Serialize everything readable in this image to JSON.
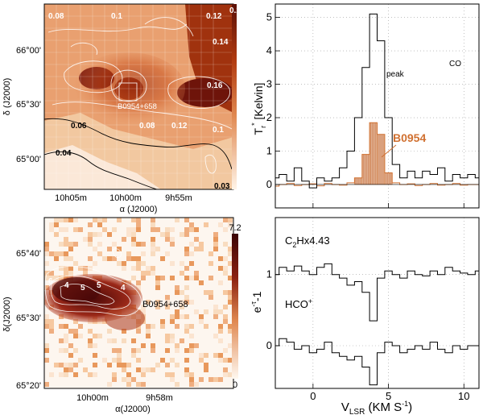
{
  "chart_data": [
    {
      "type": "heatmap",
      "panel": "top-left",
      "xlabel": "α (J2000)",
      "ylabel": "δ (J2000)",
      "x_ticks": [
        "10h05m",
        "10h00m",
        "9h55m"
      ],
      "y_ticks": [
        "66°00'",
        "65°30'",
        "65°00'"
      ],
      "colorbar_min": "0.03",
      "colorbar_max": "0.2",
      "contour_labels": [
        "0.08",
        "0.1",
        "0.12",
        "0.14",
        "0.16",
        "0.06",
        "0.08",
        "0.12",
        "0.1",
        "0.04",
        "0.03"
      ],
      "source_label": "B0954+658"
    },
    {
      "type": "line",
      "panel": "top-right",
      "ylabel_main": "T",
      "ylabel_sub": "r",
      "ylabel_sup": "*",
      "ylabel_rest": " [Kelvin]",
      "ylim": [
        -0.7,
        5.4
      ],
      "y_ticks": [
        "0",
        "1",
        "2",
        "3",
        "4",
        "5"
      ],
      "xlim": [
        -2.5,
        11
      ],
      "tag": "CO",
      "series": [
        {
          "name": "peak",
          "color": "#000000",
          "x": [
            -2.5,
            -2.0,
            -1.5,
            -1.0,
            -0.5,
            0.0,
            0.5,
            1.0,
            1.5,
            2.0,
            2.5,
            3.0,
            3.5,
            4.0,
            4.5,
            5.0,
            5.5,
            6.0,
            6.5,
            7.0,
            7.5,
            8.0,
            8.5,
            9.0,
            9.5,
            10.0,
            10.5,
            11.0
          ],
          "y": [
            0.2,
            0.3,
            0.1,
            0.5,
            0.1,
            -0.1,
            0.2,
            0.1,
            0.2,
            0.5,
            1.0,
            2.0,
            3.5,
            5.1,
            4.3,
            2.0,
            0.6,
            0.2,
            0.4,
            0.2,
            0.4,
            0.3,
            0.5,
            0.1,
            0.3,
            0.2,
            0.3,
            0.2
          ]
        },
        {
          "name": "B0954",
          "color": "#d07030",
          "x": [
            -2.5,
            -2.0,
            -1.5,
            -1.0,
            -0.5,
            0.0,
            0.5,
            1.0,
            1.5,
            2.0,
            2.5,
            3.0,
            3.5,
            4.0,
            4.5,
            5.0,
            5.5,
            6.0,
            6.5,
            7.0,
            7.5,
            8.0,
            8.5,
            9.0,
            9.5,
            10.0,
            10.5,
            11.0
          ],
          "y": [
            -0.05,
            0.0,
            0.03,
            -0.03,
            0.0,
            0.02,
            -0.04,
            0.03,
            0.0,
            -0.02,
            0.05,
            0.2,
            0.9,
            1.85,
            1.5,
            0.35,
            0.05,
            0.0,
            0.02,
            -0.03,
            0.0,
            0.03,
            -0.02,
            0.0,
            0.03,
            -0.02,
            0.0,
            0.0
          ]
        }
      ]
    },
    {
      "type": "heatmap",
      "panel": "bottom-left",
      "xlabel": "α(J2000)",
      "ylabel": "δ(J2000)",
      "x_ticks": [
        "10h00m",
        "9h58m"
      ],
      "y_ticks": [
        "65°40'",
        "65°30'",
        "65°20'"
      ],
      "colorbar_min": "0",
      "colorbar_max": "7.2",
      "contour_labels": [
        "6",
        "4",
        "5",
        "5",
        "4"
      ],
      "source_label": "B0954+658"
    },
    {
      "type": "line",
      "panel": "bottom-right",
      "ylabel": "e",
      "ylabel_sup": "-τ",
      "ylabel_rest": "-1",
      "xlabel_main": "V",
      "xlabel_sub": "LSR",
      "xlabel_rest": " (KM S",
      "xlabel_sup": "-1",
      "xlabel_end": ")",
      "xlim": [
        -2.5,
        11
      ],
      "ylim": [
        -0.6,
        1.8
      ],
      "x_ticks": [
        "0",
        "5",
        "10"
      ],
      "y_ticks": [
        "0",
        "1"
      ],
      "series": [
        {
          "name": "C",
          "name_sub": "2",
          "name_rest": "Hx4.43",
          "color": "#000000",
          "x": [
            -2.5,
            -2.0,
            -1.5,
            -1.0,
            -0.5,
            0.0,
            0.5,
            1.0,
            1.5,
            2.0,
            2.5,
            3.0,
            3.5,
            4.0,
            4.5,
            5.0,
            5.5,
            6.0,
            6.5,
            7.0,
            7.5,
            8.0,
            8.5,
            9.0,
            9.5,
            10.0,
            10.5,
            11.0
          ],
          "y": [
            1.0,
            1.1,
            1.05,
            1.12,
            1.05,
            1.0,
            1.1,
            1.15,
            1.0,
            0.95,
            0.85,
            0.9,
            0.75,
            0.35,
            0.95,
            1.05,
            1.0,
            0.95,
            1.05,
            1.0,
            0.98,
            1.05,
            1.0,
            1.1,
            1.05,
            1.02,
            1.0,
            1.05
          ]
        },
        {
          "name": "HCO",
          "name_sup": "+",
          "color": "#000000",
          "x": [
            -2.5,
            -2.0,
            -1.5,
            -1.0,
            -0.5,
            0.0,
            0.5,
            1.0,
            1.5,
            2.0,
            2.5,
            3.0,
            3.5,
            4.0,
            4.5,
            5.0,
            5.5,
            6.0,
            6.5,
            7.0,
            7.5,
            8.0,
            8.5,
            9.0,
            9.5,
            10.0,
            10.5,
            11.0
          ],
          "y": [
            0.0,
            0.1,
            0.05,
            -0.05,
            0.0,
            -0.1,
            -0.05,
            0.05,
            -0.1,
            -0.15,
            -0.2,
            -0.15,
            -0.3,
            -0.55,
            -0.1,
            0.05,
            0.0,
            -0.1,
            -0.05,
            0.0,
            -0.05,
            0.05,
            -0.05,
            -0.1,
            0.0,
            -0.05,
            0.0,
            0.0
          ]
        }
      ]
    }
  ]
}
